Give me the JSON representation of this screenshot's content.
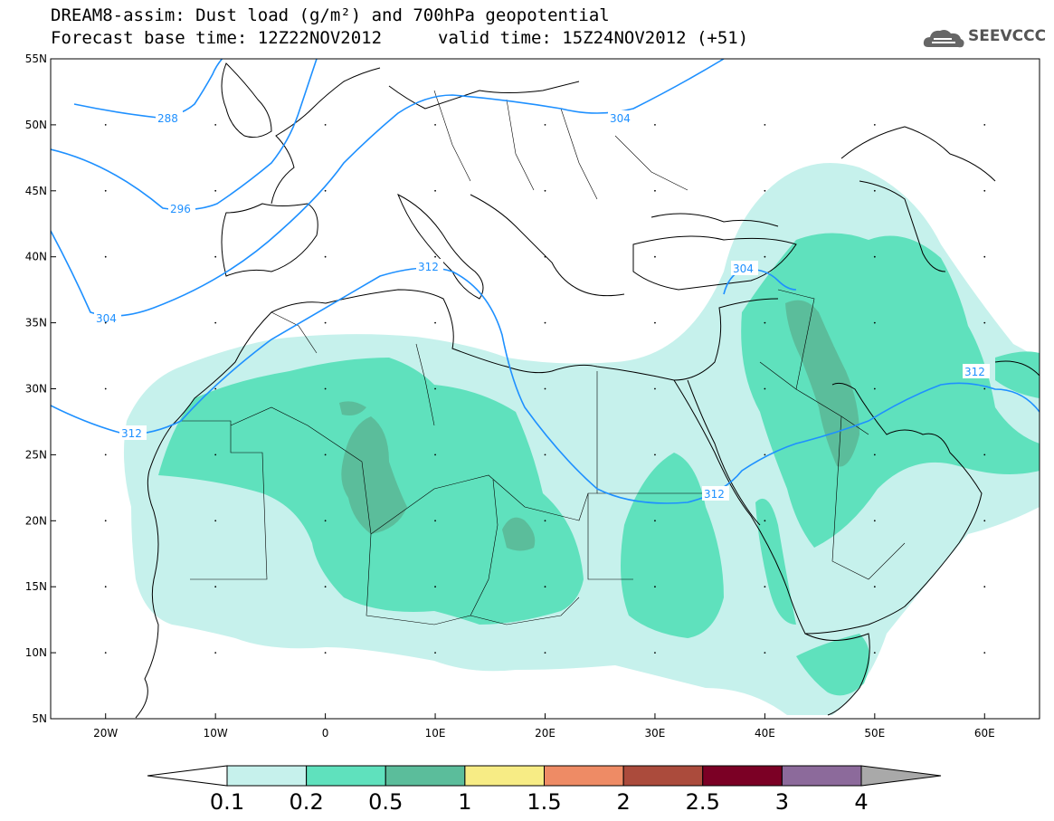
{
  "header": {
    "title_line1": "DREAM8-assim: Dust load (g/m²) and 700hPa geopotential",
    "base_time": "Forecast base time: 12Z22NOV2012",
    "valid_time": "valid time: 15Z24NOV2012 (+51)"
  },
  "logo": {
    "text": "SEEVCCC",
    "icon": "cloud-icon"
  },
  "map": {
    "lon_range": [
      -25,
      65
    ],
    "lat_range": [
      5,
      55
    ],
    "x_ticks": [
      "20W",
      "10W",
      "0",
      "10E",
      "20E",
      "30E",
      "40E",
      "50E",
      "60E"
    ],
    "y_ticks": [
      "55N",
      "50N",
      "45N",
      "40N",
      "35N",
      "30N",
      "25N",
      "20N",
      "15N",
      "10N",
      "5N"
    ],
    "contour_color": "#1e90ff",
    "contour_labels": [
      "288",
      "296",
      "304",
      "312",
      "304",
      "304",
      "312",
      "312",
      "312"
    ]
  },
  "legend": {
    "labels": [
      "0.1",
      "0.2",
      "0.5",
      "1",
      "1.5",
      "2",
      "2.5",
      "3",
      "4"
    ],
    "colors": [
      "#ffffff",
      "#c6f1ec",
      "#5fe1bd",
      "#5bbd9b",
      "#f7ec85",
      "#ee8b65",
      "#ab4b3c",
      "#7b0025",
      "#8c6a9b",
      "#a9a9a9"
    ]
  },
  "dust_colors": {
    "level1": "#c6f1ec",
    "level2": "#5fe1bd",
    "level3": "#5bbd9b"
  }
}
